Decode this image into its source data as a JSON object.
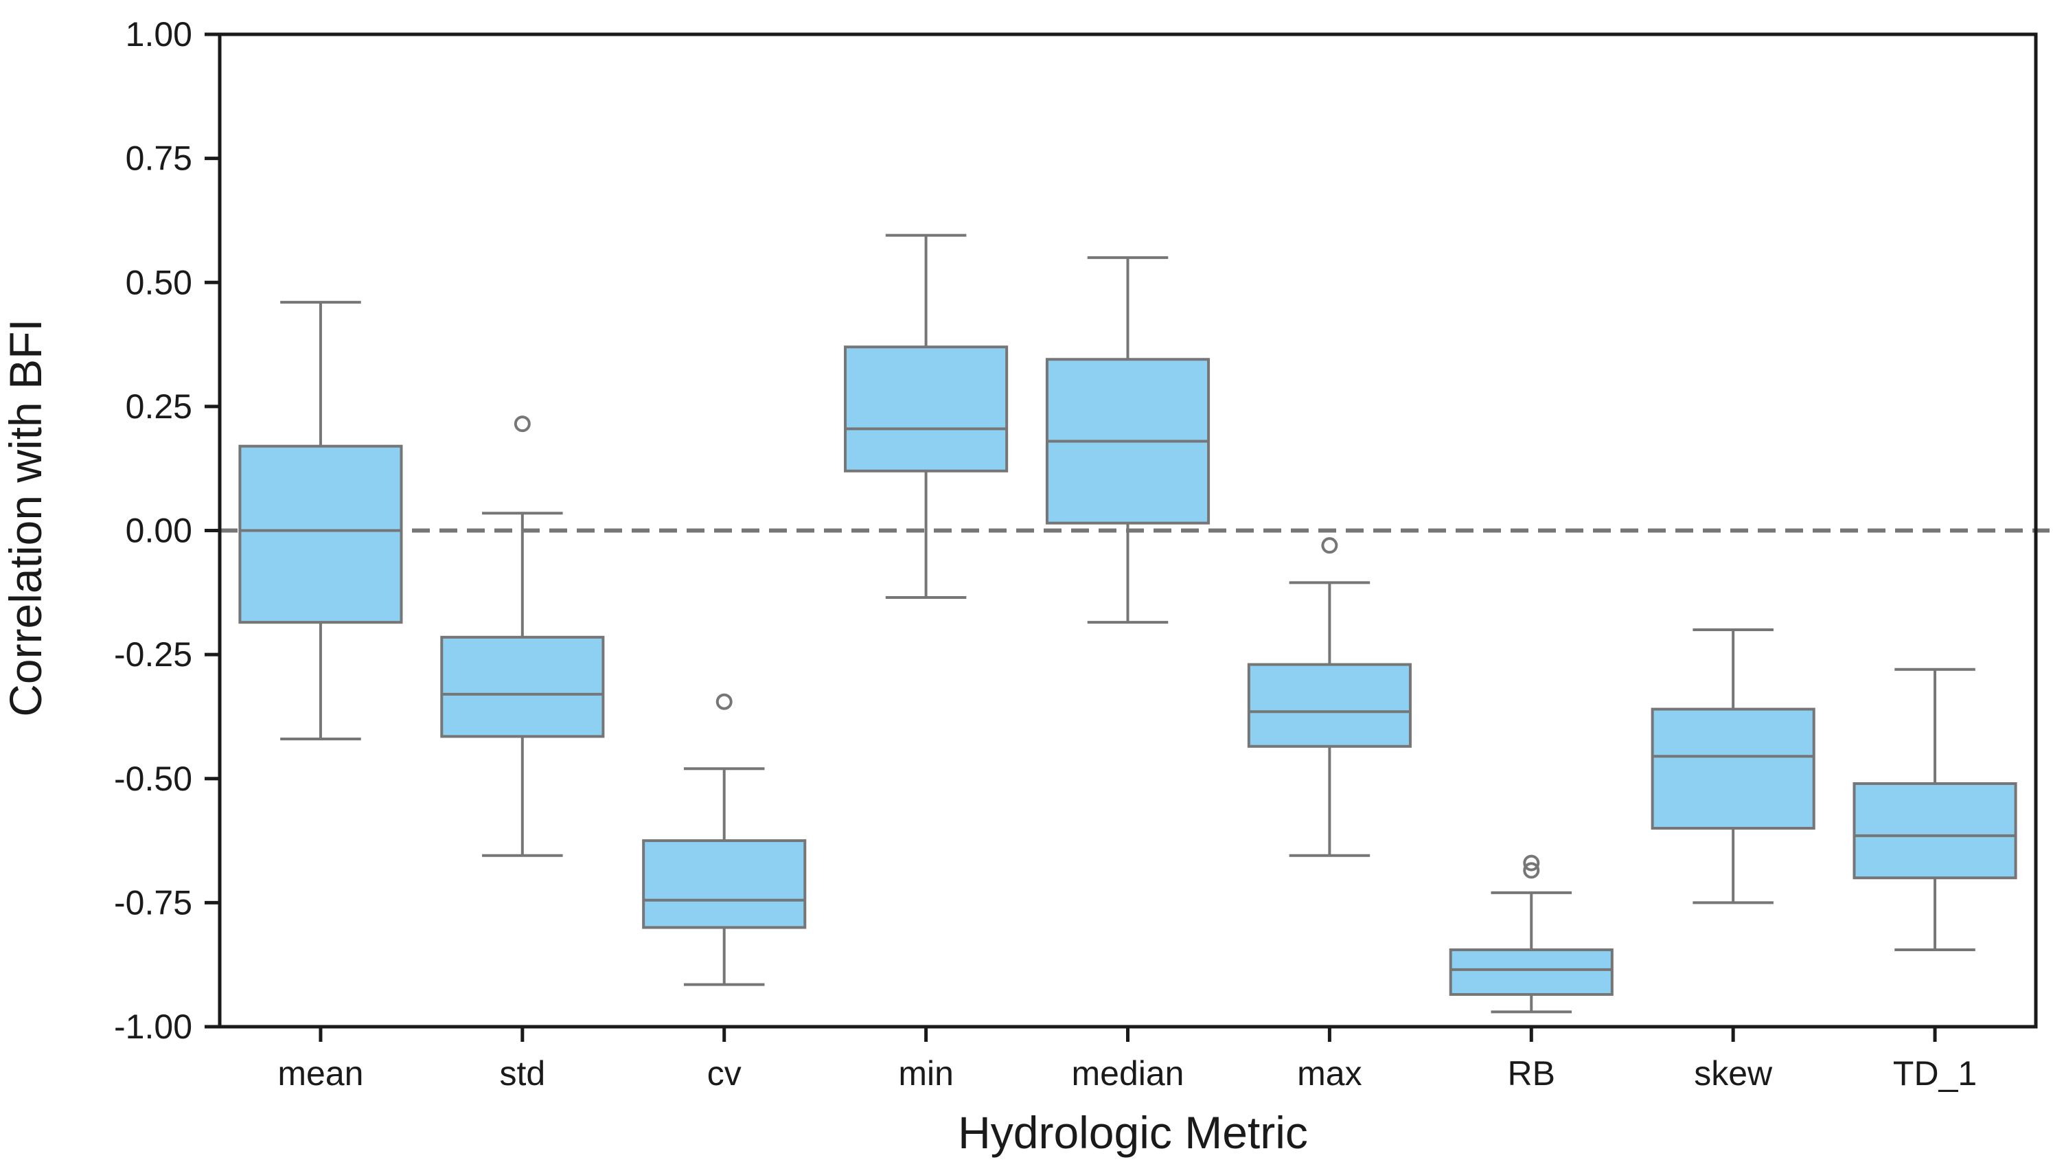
{
  "chart_data": {
    "type": "boxplot",
    "title": "",
    "xlabel": "Hydrologic Metric",
    "ylabel": "Correlation with BFI",
    "ylim": [
      -1.0,
      1.0
    ],
    "yticks": [
      "1.00",
      "0.75",
      "0.50",
      "0.25",
      "0.00",
      "-0.25",
      "-0.50",
      "-0.75",
      "-1.00"
    ],
    "ytick_values": [
      1.0,
      0.75,
      0.5,
      0.25,
      0.0,
      -0.25,
      -0.5,
      -0.75,
      -1.0
    ],
    "reference_line": 0.0,
    "box_color": "#8dd0f2",
    "line_color": "#767676",
    "categories": [
      "mean",
      "std",
      "cv",
      "min",
      "median",
      "max",
      "RB",
      "skew",
      "TD_1"
    ],
    "boxes": [
      {
        "label": "mean",
        "whisker_low": -0.42,
        "q1": -0.185,
        "median": 0.0,
        "q3": 0.17,
        "whisker_high": 0.46,
        "outliers": []
      },
      {
        "label": "std",
        "whisker_low": -0.655,
        "q1": -0.415,
        "median": -0.33,
        "q3": -0.215,
        "whisker_high": 0.035,
        "outliers": [
          0.215
        ]
      },
      {
        "label": "cv",
        "whisker_low": -0.915,
        "q1": -0.8,
        "median": -0.745,
        "q3": -0.625,
        "whisker_high": -0.48,
        "outliers": [
          -0.345
        ]
      },
      {
        "label": "min",
        "whisker_low": -0.135,
        "q1": 0.12,
        "median": 0.205,
        "q3": 0.37,
        "whisker_high": 0.595,
        "outliers": []
      },
      {
        "label": "median",
        "whisker_low": -0.185,
        "q1": 0.015,
        "median": 0.18,
        "q3": 0.345,
        "whisker_high": 0.55,
        "outliers": []
      },
      {
        "label": "max",
        "whisker_low": -0.655,
        "q1": -0.435,
        "median": -0.365,
        "q3": -0.27,
        "whisker_high": -0.105,
        "outliers": [
          -0.03
        ]
      },
      {
        "label": "RB",
        "whisker_low": -0.97,
        "q1": -0.935,
        "median": -0.885,
        "q3": -0.845,
        "whisker_high": -0.73,
        "outliers": [
          -0.67,
          -0.685
        ]
      },
      {
        "label": "skew",
        "whisker_low": -0.75,
        "q1": -0.6,
        "median": -0.455,
        "q3": -0.36,
        "whisker_high": -0.2,
        "outliers": []
      },
      {
        "label": "TD_1",
        "whisker_low": -0.845,
        "q1": -0.7,
        "median": -0.615,
        "q3": -0.51,
        "whisker_high": -0.28,
        "outliers": []
      }
    ]
  }
}
